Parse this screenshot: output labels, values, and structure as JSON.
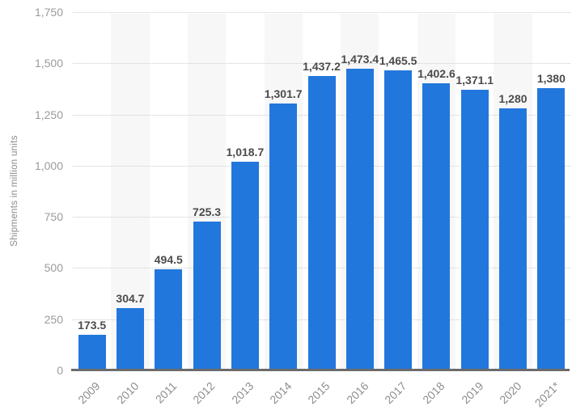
{
  "chart_data": {
    "type": "bar",
    "title": "",
    "xlabel": "",
    "ylabel": "Shipments in million units",
    "categories": [
      "2009",
      "2010",
      "2011",
      "2012",
      "2013",
      "2014",
      "2015",
      "2016",
      "2017",
      "2018",
      "2019",
      "2020",
      "2021*"
    ],
    "values": [
      173.5,
      304.7,
      494.5,
      725.3,
      1018.7,
      1301.7,
      1437.2,
      1473.4,
      1465.5,
      1402.6,
      1371.1,
      1280,
      1380
    ],
    "value_labels": [
      "173.5",
      "304.7",
      "494.5",
      "725.3",
      "1,018.7",
      "1,301.7",
      "1,437.2",
      "1,473.4",
      "1,465.5",
      "1,402.6",
      "1,371.1",
      "1,280",
      "1,380"
    ],
    "ylim": [
      0,
      1750
    ],
    "ytick_interval": 250,
    "ytick_labels": [
      "0",
      "250",
      "500",
      "750",
      "1,000",
      "1,250",
      "1,500",
      "1,750"
    ],
    "grid": "horizontal-dotted",
    "legend": "none",
    "striped_columns": [
      1,
      3,
      5,
      7,
      9,
      11
    ],
    "colors": {
      "bar": "#2277dc",
      "column_stripe": "#f7f7f7",
      "gridline": "#cccccc",
      "axis_line": "#6b6b6b",
      "y_tick_text": "#9b9b9b",
      "x_tick_text": "#8e8e8e",
      "value_label_text": "#4b4b4b",
      "axis_title_text": "#8a8a8a",
      "background": "#ffffff"
    }
  }
}
